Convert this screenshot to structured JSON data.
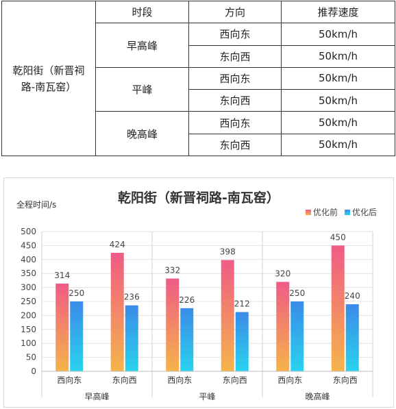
{
  "table": {
    "headers": [
      "时段",
      "方向",
      "推荐速度"
    ],
    "road": "乾阳街（新晋祠路-南瓦窑）",
    "road_lines": [
      "乾阳街（新晋祠",
      "路-南瓦窑）"
    ],
    "periods": [
      {
        "name": "早高峰",
        "rows": [
          {
            "direction": "西向东",
            "speed": "50km/h"
          },
          {
            "direction": "东向西",
            "speed": "50km/h"
          }
        ]
      },
      {
        "name": "平峰",
        "rows": [
          {
            "direction": "西向东",
            "speed": "50km/h"
          },
          {
            "direction": "东向西",
            "speed": "50km/h"
          }
        ]
      },
      {
        "name": "晚高峰",
        "rows": [
          {
            "direction": "西向东",
            "speed": "50km/h"
          },
          {
            "direction": "东向西",
            "speed": "50km/h"
          }
        ]
      }
    ]
  },
  "chart_data": {
    "type": "bar",
    "title": "乾阳街（新晋祠路-南瓦窑）",
    "ylabel": "全程时间/s",
    "ylim": [
      0,
      500
    ],
    "yticks": [
      0,
      50,
      100,
      150,
      200,
      250,
      300,
      350,
      400,
      450,
      500
    ],
    "groups": [
      "早高峰",
      "平峰",
      "晚高峰"
    ],
    "categories": [
      "西向东",
      "东向西",
      "西向东",
      "东向西",
      "西向东",
      "东向西"
    ],
    "series": [
      {
        "name": "优化前",
        "values": [
          314,
          424,
          332,
          398,
          320,
          450
        ],
        "colors": [
          "#ef5b86",
          "#f5b44a"
        ]
      },
      {
        "name": "优化后",
        "values": [
          250,
          236,
          226,
          212,
          250,
          240
        ],
        "colors": [
          "#3b8be8",
          "#29d3ee"
        ]
      }
    ],
    "legend_position": "top-right",
    "grid": true
  }
}
